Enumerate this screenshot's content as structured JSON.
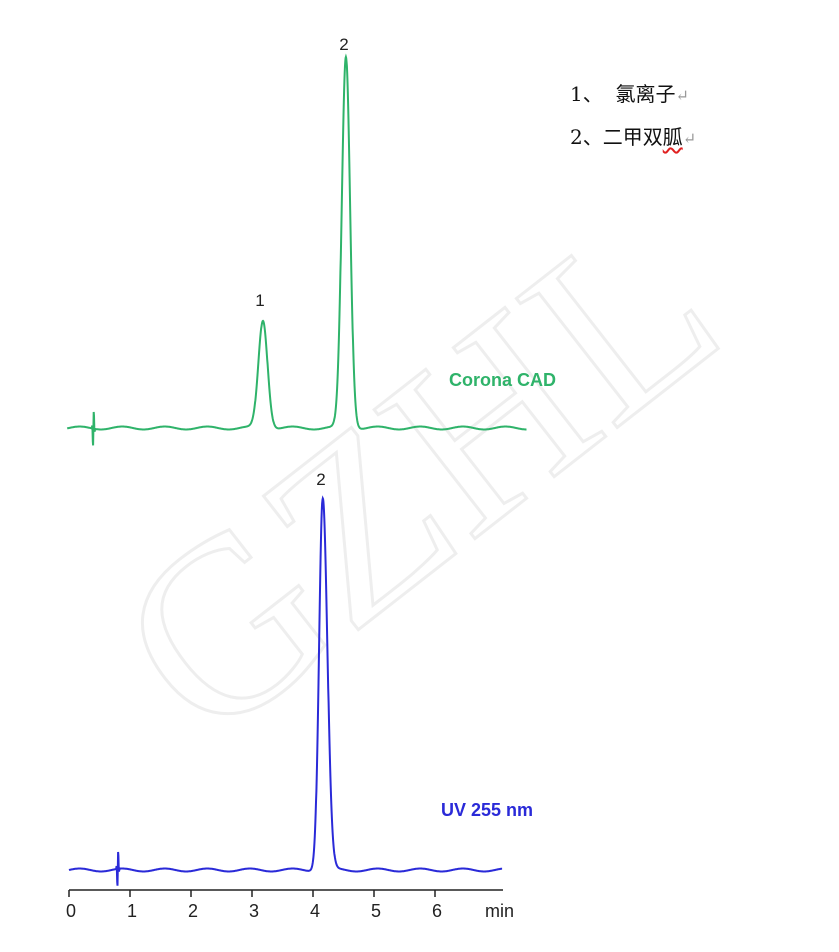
{
  "chart_data": [
    {
      "type": "line",
      "title": "Corona CAD",
      "xlabel": "min",
      "color": "#2fb36a",
      "xlim": [
        0,
        7.1
      ],
      "ylabel": "",
      "baseline_noise_at": 0.4,
      "peaks": [
        {
          "label": "1",
          "x": 3.18,
          "height": 29,
          "width": 0.075
        },
        {
          "label": "2",
          "x": 4.54,
          "height": 100,
          "width": 0.068
        }
      ]
    },
    {
      "type": "line",
      "title": "UV 255 nm",
      "xlabel": "min",
      "color": "#2a2ad8",
      "xlim": [
        0,
        7.1
      ],
      "ylabel": "",
      "baseline_noise_at": 0.8,
      "peaks": [
        {
          "label": "2",
          "x": 4.16,
          "height": 100,
          "width": 0.06
        }
      ],
      "x_ticks": [
        "0",
        "1",
        "2",
        "3",
        "4",
        "5",
        "6"
      ]
    }
  ],
  "legend": {
    "items": [
      {
        "num": "1、",
        "name": "氯离子"
      },
      {
        "num": "2、",
        "name": "二甲双胍"
      }
    ],
    "return_mark": "↵"
  },
  "watermark": "GZHL"
}
